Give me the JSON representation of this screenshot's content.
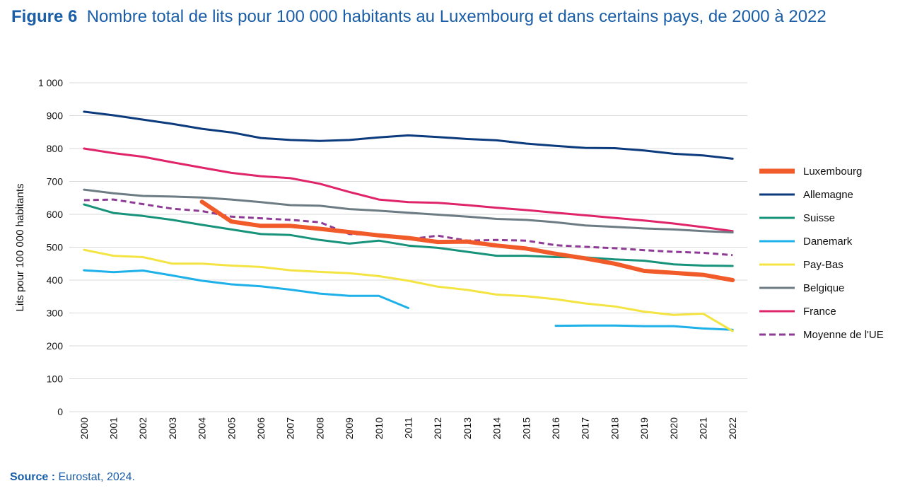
{
  "title": {
    "figure_label": "Figure 6",
    "text": "Nombre total de lits pour 100 000 habitants au Luxembourg et dans certains pays, de 2000 à 2022"
  },
  "source": {
    "label": "Source :",
    "text": "Eurostat, 2024."
  },
  "colors": {
    "luxembourg": "#f15a29",
    "allemagne": "#0b3a7d",
    "suisse": "#16937a",
    "danemark": "#1eb0e8",
    "paysbas": "#f4e443",
    "belgique": "#6d7c84",
    "france": "#e0246a",
    "ue": "#8e3b96",
    "grid": "#d9d9d9"
  },
  "chart_data": {
    "type": "line",
    "ylabel": "Lits pour 100 000 habitants",
    "xlabel": "",
    "ylim": [
      0,
      1000
    ],
    "yticks": [
      0,
      100,
      200,
      300,
      400,
      500,
      600,
      700,
      800,
      900,
      1000
    ],
    "ytick_labels": [
      "0",
      "100",
      "200",
      "300",
      "400",
      "500",
      "600",
      "700",
      "800",
      "900",
      "1 000"
    ],
    "grid": "horizontal",
    "legend": "right",
    "x": [
      "2000",
      "2001",
      "2002",
      "2003",
      "2004",
      "2005",
      "2006",
      "2007",
      "2008",
      "2009",
      "2010",
      "2011",
      "2012",
      "2013",
      "2014",
      "2015",
      "2016",
      "2017",
      "2018",
      "2019",
      "2020",
      "2021",
      "2022"
    ],
    "series": [
      {
        "name": "Luxembourg",
        "color_key": "luxembourg",
        "style": "thick",
        "values": [
          null,
          null,
          null,
          null,
          638,
          578,
          565,
          565,
          556,
          546,
          536,
          528,
          516,
          517,
          505,
          496,
          480,
          466,
          450,
          428,
          422,
          416,
          400
        ]
      },
      {
        "name": "Allemagne",
        "color_key": "allemagne",
        "style": "solid",
        "values": [
          912,
          901,
          888,
          875,
          860,
          849,
          832,
          826,
          823,
          826,
          834,
          840,
          835,
          829,
          825,
          815,
          808,
          802,
          801,
          794,
          784,
          779,
          769
        ]
      },
      {
        "name": "Suisse",
        "color_key": "suisse",
        "style": "solid",
        "values": [
          630,
          604,
          595,
          583,
          568,
          554,
          540,
          537,
          522,
          511,
          520,
          505,
          498,
          486,
          474,
          474,
          470,
          469,
          463,
          459,
          448,
          444,
          443
        ]
      },
      {
        "name": "Danemark",
        "color_key": "danemark",
        "style": "solid",
        "values": [
          430,
          424,
          429,
          414,
          398,
          387,
          381,
          371,
          359,
          352,
          352,
          315,
          null,
          null,
          null,
          null,
          261,
          262,
          262,
          260,
          260,
          253,
          249
        ]
      },
      {
        "name": "Pay-Bas",
        "color_key": "paysbas",
        "style": "solid",
        "values": [
          492,
          474,
          470,
          450,
          450,
          444,
          440,
          430,
          425,
          421,
          412,
          398,
          380,
          370,
          356,
          351,
          342,
          329,
          320,
          304,
          294,
          298,
          245
        ]
      },
      {
        "name": "Belgique",
        "color_key": "belgique",
        "style": "solid",
        "values": [
          675,
          664,
          656,
          654,
          651,
          645,
          637,
          628,
          626,
          616,
          611,
          605,
          599,
          593,
          586,
          583,
          576,
          566,
          562,
          557,
          554,
          549,
          545
        ]
      },
      {
        "name": "France",
        "color_key": "france",
        "style": "solid",
        "values": [
          800,
          786,
          775,
          758,
          742,
          726,
          716,
          710,
          693,
          668,
          645,
          637,
          635,
          628,
          620,
          613,
          605,
          597,
          589,
          581,
          572,
          561,
          549
        ]
      },
      {
        "name": "Moyenne de l'UE",
        "color_key": "ue",
        "style": "dashed",
        "values": [
          643,
          645,
          631,
          617,
          610,
          593,
          588,
          583,
          576,
          540,
          538,
          524,
          535,
          520,
          522,
          520,
          506,
          501,
          497,
          491,
          486,
          483,
          476
        ]
      }
    ]
  }
}
